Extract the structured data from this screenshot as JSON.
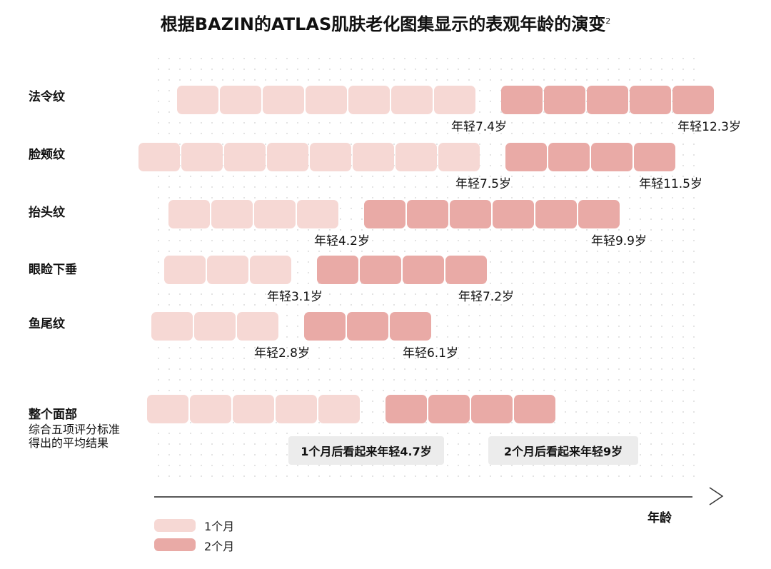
{
  "title": "根据BAZIN的ATLAS肌肤老化图集显示的表观年龄的演变",
  "title_sup": "2",
  "colors": {
    "one_month": "#f6d8d4",
    "two_months": "#e9aaa6",
    "callout_bg": "#ececec",
    "axis": "#222222",
    "grid_dot": "#cfcfcf"
  },
  "chart_data": {
    "type": "bar",
    "categories": [
      "法令纹",
      "脸颊纹",
      "抬头纹",
      "眼睑下垂",
      "鱼尾纹",
      "整个面部"
    ],
    "category_note": "综合五项评分标准得出的平均结果",
    "series": [
      {
        "name": "1个月",
        "values": [
          7.4,
          7.5,
          4.2,
          3.1,
          2.8,
          4.7
        ]
      },
      {
        "name": "2个月",
        "values": [
          12.3,
          11.5,
          9.9,
          7.2,
          6.1,
          9.0
        ]
      }
    ],
    "data_labels": [
      [
        "年轻7.4岁",
        "年轻12.3岁"
      ],
      [
        "年轻7.5岁",
        "年轻11.5岁"
      ],
      [
        "年轻4.2岁",
        "年轻9.9岁"
      ],
      [
        "年轻3.1岁",
        "年轻7.2岁"
      ],
      [
        "年轻2.8岁",
        "年轻6.1岁"
      ],
      [
        "1个月后看起来年轻4.7岁",
        "2个月后看起来年轻9岁"
      ]
    ],
    "xlabel": "年龄",
    "ylabel": "",
    "unit": "岁",
    "grid": true,
    "legend_position": "bottom-left"
  },
  "legend": [
    {
      "label": "1个月"
    },
    {
      "label": "2个月"
    }
  ]
}
